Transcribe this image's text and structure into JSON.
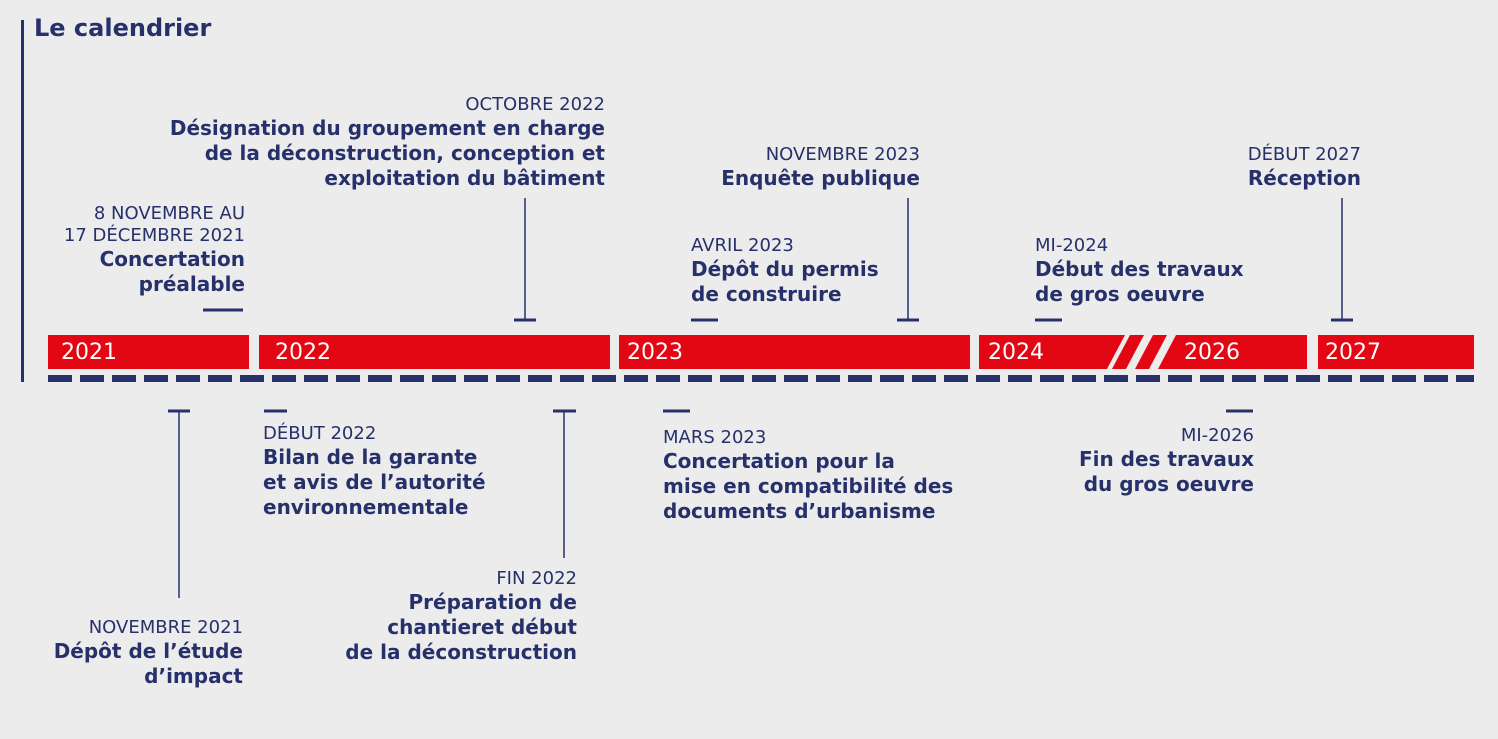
{
  "title": "Le calendrier",
  "colors": {
    "accent": "#e30613",
    "navy": "#26306b",
    "background": "#ececec"
  },
  "years": [
    "2021",
    "2022",
    "2023",
    "2024",
    "2026",
    "2027"
  ],
  "events_above": [
    {
      "date": "8 NOVEMBRE AU\n17 DÉCEMBRE 2021",
      "desc": "Concertation\npréalable"
    },
    {
      "date": "OCTOBRE 2022",
      "desc": "Désignation du groupement en charge\nde la déconstruction, conception et\nexploitation du bâtiment"
    },
    {
      "date": "AVRIL 2023",
      "desc": "Dépôt du permis\nde construire"
    },
    {
      "date": "NOVEMBRE 2023",
      "desc": "Enquête publique"
    },
    {
      "date": "MI-2024",
      "desc": "Début des travaux\nde gros oeuvre"
    },
    {
      "date": "DÉBUT 2027",
      "desc": "Réception"
    }
  ],
  "events_below": [
    {
      "date": "NOVEMBRE 2021",
      "desc": "Dépôt de l’étude\nd’impact"
    },
    {
      "date": "DÉBUT 2022",
      "desc": "Bilan de la garante\net avis de l’autorité\nenvironnementale"
    },
    {
      "date": "FIN 2022",
      "desc": "Préparation de\nchantieret début\nde la déconstruction"
    },
    {
      "date": "MARS 2023",
      "desc": "Concertation pour la\nmise en compatibilité des\ndocuments d’urbanisme"
    },
    {
      "date": "MI-2026",
      "desc": "Fin des travaux\ndu gros oeuvre"
    }
  ]
}
